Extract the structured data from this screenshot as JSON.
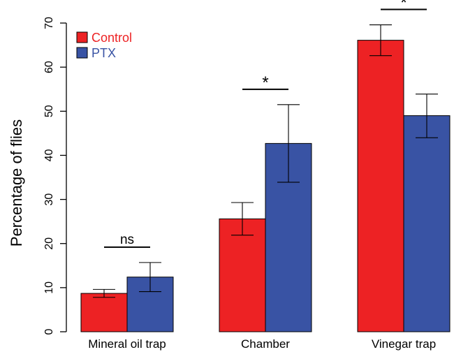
{
  "chart_data": {
    "type": "bar",
    "title": "",
    "xlabel": "",
    "ylabel": "Percentage of flies",
    "ylim": [
      0,
      70
    ],
    "yticks": [
      0,
      10,
      20,
      30,
      40,
      50,
      60,
      70
    ],
    "grid": false,
    "legend_position": "top-left",
    "categories": [
      "Mineral oil trap",
      "Chamber",
      "Vinegar trap"
    ],
    "series": [
      {
        "name": "Control",
        "color": "#ED2224",
        "values": [
          8.7,
          25.6,
          66.1
        ],
        "error_low": [
          7.8,
          21.9,
          62.6
        ],
        "error_high": [
          9.6,
          29.3,
          69.6
        ]
      },
      {
        "name": "PTX",
        "color": "#3953A4",
        "values": [
          12.4,
          42.7,
          49.0
        ],
        "error_low": [
          9.1,
          33.9,
          44.0
        ],
        "error_high": [
          15.7,
          51.5,
          53.9
        ]
      }
    ],
    "significance": [
      "ns",
      "*",
      "*"
    ]
  }
}
